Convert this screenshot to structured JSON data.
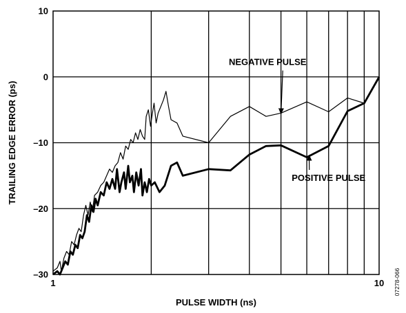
{
  "chart_data": {
    "type": "line",
    "xscale": "log",
    "xlim": [
      1,
      10
    ],
    "ylim": [
      -30,
      10
    ],
    "xlabel": "PULSE WIDTH (ns)",
    "ylabel": "TRAILING EDGE ERROR (ps)",
    "x_ticks": [
      1,
      2,
      3,
      4,
      5,
      6,
      7,
      8,
      9,
      10
    ],
    "x_tick_labels": [
      "1",
      "",
      "",
      "",
      "",
      "",
      "",
      "",
      "",
      "10"
    ],
    "y_ticks": [
      -30,
      -20,
      -10,
      0,
      10
    ],
    "y_tick_labels": [
      "–30",
      "–20",
      "–10",
      "0",
      "10"
    ],
    "grid": true,
    "figure_id": "07278-066",
    "series": [
      {
        "name": "NEGATIVE PULSE",
        "style": "thin",
        "color": "#000000",
        "points": [
          [
            1.0,
            -29.5
          ],
          [
            1.03,
            -29.0
          ],
          [
            1.05,
            -28.0
          ],
          [
            1.06,
            -29.5
          ],
          [
            1.08,
            -27.5
          ],
          [
            1.1,
            -26.5
          ],
          [
            1.12,
            -27.0
          ],
          [
            1.14,
            -25.0
          ],
          [
            1.16,
            -25.5
          ],
          [
            1.18,
            -24.0
          ],
          [
            1.2,
            -23.0
          ],
          [
            1.22,
            -23.5
          ],
          [
            1.24,
            -21.0
          ],
          [
            1.26,
            -19.5
          ],
          [
            1.28,
            -21.0
          ],
          [
            1.3,
            -19.0
          ],
          [
            1.32,
            -20.5
          ],
          [
            1.34,
            -18.0
          ],
          [
            1.37,
            -17.5
          ],
          [
            1.4,
            -16.5
          ],
          [
            1.43,
            -16.0
          ],
          [
            1.46,
            -15.0
          ],
          [
            1.49,
            -14.0
          ],
          [
            1.52,
            -14.5
          ],
          [
            1.55,
            -13.5
          ],
          [
            1.58,
            -13.0
          ],
          [
            1.61,
            -11.5
          ],
          [
            1.64,
            -12.5
          ],
          [
            1.67,
            -10.5
          ],
          [
            1.7,
            -11.0
          ],
          [
            1.73,
            -9.5
          ],
          [
            1.76,
            -10.0
          ],
          [
            1.79,
            -8.5
          ],
          [
            1.82,
            -9.5
          ],
          [
            1.85,
            -8.0
          ],
          [
            1.88,
            -9.0
          ],
          [
            1.91,
            -9.5
          ],
          [
            1.93,
            -6.0
          ],
          [
            1.96,
            -5.0
          ],
          [
            1.99,
            -7.5
          ],
          [
            2.01,
            -6.0
          ],
          [
            2.04,
            -4.0
          ],
          [
            2.07,
            -7.0
          ],
          [
            2.1,
            -5.5
          ],
          [
            2.14,
            -4.5
          ],
          [
            2.18,
            -3.5
          ],
          [
            2.22,
            -2.2
          ],
          [
            2.26,
            -4.5
          ],
          [
            2.3,
            -6.5
          ],
          [
            2.4,
            -7.0
          ],
          [
            2.5,
            -9.0
          ],
          [
            3.0,
            -10.0
          ],
          [
            3.5,
            -6.0
          ],
          [
            4.0,
            -4.5
          ],
          [
            4.5,
            -6.0
          ],
          [
            5.0,
            -5.5
          ],
          [
            6.0,
            -3.8
          ],
          [
            7.0,
            -5.3
          ],
          [
            8.0,
            -3.2
          ],
          [
            9.0,
            -4.0
          ],
          [
            10.0,
            -0.2
          ]
        ]
      },
      {
        "name": "POSITIVE PULSE",
        "style": "thick",
        "color": "#000000",
        "points": [
          [
            1.0,
            -30.0
          ],
          [
            1.03,
            -29.5
          ],
          [
            1.05,
            -30.0
          ],
          [
            1.07,
            -29.0
          ],
          [
            1.09,
            -28.0
          ],
          [
            1.11,
            -28.5
          ],
          [
            1.13,
            -26.5
          ],
          [
            1.15,
            -27.0
          ],
          [
            1.17,
            -25.5
          ],
          [
            1.19,
            -26.0
          ],
          [
            1.21,
            -24.0
          ],
          [
            1.23,
            -24.5
          ],
          [
            1.25,
            -23.5
          ],
          [
            1.27,
            -21.0
          ],
          [
            1.29,
            -22.0
          ],
          [
            1.31,
            -19.5
          ],
          [
            1.33,
            -20.5
          ],
          [
            1.35,
            -18.5
          ],
          [
            1.37,
            -19.5
          ],
          [
            1.4,
            -17.5
          ],
          [
            1.43,
            -18.0
          ],
          [
            1.46,
            -16.0
          ],
          [
            1.49,
            -17.0
          ],
          [
            1.52,
            -15.5
          ],
          [
            1.55,
            -17.0
          ],
          [
            1.57,
            -14.0
          ],
          [
            1.6,
            -17.5
          ],
          [
            1.62,
            -16.0
          ],
          [
            1.65,
            -14.5
          ],
          [
            1.67,
            -17.0
          ],
          [
            1.7,
            -13.5
          ],
          [
            1.72,
            -16.0
          ],
          [
            1.75,
            -15.0
          ],
          [
            1.77,
            -17.5
          ],
          [
            1.8,
            -14.5
          ],
          [
            1.83,
            -16.5
          ],
          [
            1.86,
            -14.0
          ],
          [
            1.88,
            -18.0
          ],
          [
            1.91,
            -16.0
          ],
          [
            1.94,
            -17.5
          ],
          [
            1.97,
            -15.5
          ],
          [
            2.0,
            -16.5
          ],
          [
            2.05,
            -16.0
          ],
          [
            2.12,
            -17.5
          ],
          [
            2.2,
            -16.5
          ],
          [
            2.3,
            -13.5
          ],
          [
            2.4,
            -13.0
          ],
          [
            2.5,
            -15.0
          ],
          [
            3.0,
            -14.0
          ],
          [
            3.5,
            -14.2
          ],
          [
            4.0,
            -11.8
          ],
          [
            4.5,
            -10.5
          ],
          [
            5.0,
            -10.4
          ],
          [
            6.0,
            -12.2
          ],
          [
            7.0,
            -10.5
          ],
          [
            8.0,
            -5.2
          ],
          [
            9.0,
            -4.0
          ],
          [
            10.0,
            0.0
          ]
        ]
      }
    ],
    "annotations": [
      {
        "text": "NEGATIVE PULSE",
        "label_x": 4.55,
        "label_y": 1.8,
        "arrow_to_x": 5.0,
        "arrow_to_y": -5.6
      },
      {
        "text": "POSITIVE PULSE",
        "label_x": 7.0,
        "label_y": -15.8,
        "arrow_to_x": 6.1,
        "arrow_to_y": -11.9
      }
    ]
  }
}
